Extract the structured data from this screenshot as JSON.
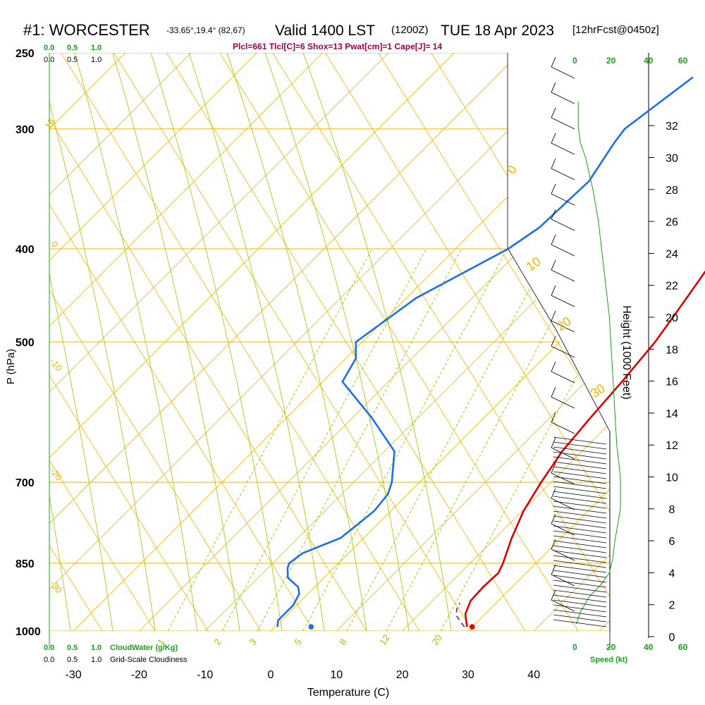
{
  "header": {
    "station": "#1: WORCESTER",
    "coords": "-33.65°,19.4° (82,67)",
    "valid": "Valid 1400 LST",
    "zulu": "(1200Z)",
    "date": "TUE 18 Apr 2023",
    "forecast": "[12hrFcst@0450z]",
    "indices": "Plcl=661 Tlcl[C]=6 Shox=13 Pwat[cm]=1 Cape[J]= 14"
  },
  "scale_labels": {
    "cloud_top": [
      "0.0",
      "0.5",
      "1.0"
    ],
    "cloudiness_top": [
      "0.0",
      "0.5",
      "1.0"
    ],
    "cloud_bottom": [
      "0.0",
      "0.5",
      "1.0"
    ],
    "cloudiness_bottom": [
      "0.0",
      "0.5",
      "1.0"
    ],
    "cloudwater_label": "CloudWater (g/Kg)",
    "cloudiness_label": "Grid-Scale Cloudiness",
    "speed_ticks": [
      "0",
      "20",
      "40",
      "60"
    ],
    "speed_label": "Speed (kt)"
  },
  "colors": {
    "isobar": "#f0b400",
    "isotherm": "#f0b400",
    "dry_adiabat": "#96c800",
    "moist_adiabat": "#96c800",
    "mixing_ratio": "#96c800",
    "temperature": "#e00000",
    "dewpoint": "#1e6ee6",
    "speed": "#1aa01a",
    "cloud": "#1aa01a",
    "indices": "#a0004b"
  },
  "chart_data": {
    "type": "line",
    "title": "#1: WORCESTER",
    "xlabel": "Temperature (C)",
    "ylabel": "P (hPa)",
    "y2label": "Height (1000 Feet)",
    "xlim": [
      -33,
      33
    ],
    "ylim": [
      1000,
      250
    ],
    "x_ticks": [
      -30,
      -20,
      -10,
      0,
      10,
      20,
      30,
      40
    ],
    "pressure_ticks": [
      250,
      300,
      400,
      500,
      700,
      850,
      1000
    ],
    "height_ticks": [
      0,
      2,
      4,
      6,
      8,
      10,
      12,
      14,
      16,
      18,
      20,
      22,
      24,
      26,
      28,
      30,
      32
    ],
    "isotherm_labels": [
      "10",
      "0",
      "-10",
      "-20",
      "-30",
      "0",
      "10",
      "20",
      "30"
    ],
    "mixing_ratio_labels": [
      "1",
      "2",
      "3",
      "5",
      "8",
      "12",
      "20"
    ],
    "series": [
      {
        "key": "temperature",
        "p": [
          990,
          960,
          930,
          900,
          870,
          850,
          800,
          750,
          700,
          650,
          600,
          550,
          500,
          450,
          400,
          350,
          300,
          265
        ],
        "temp": [
          29.2,
          27.0,
          25.8,
          25.6,
          25.8,
          25.0,
          22.5,
          20.2,
          18.5,
          17.0,
          16.2,
          15.5,
          14.5,
          12.6,
          10.4,
          7.4,
          3.4,
          0.0
        ]
      },
      {
        "key": "dewpoint",
        "p": [
          990,
          975,
          940,
          915,
          900,
          880,
          860,
          850,
          830,
          800,
          775,
          750,
          720,
          700,
          650,
          600,
          550,
          520,
          500,
          450,
          400,
          380,
          340,
          310,
          300,
          265
        ],
        "temp": [
          0.4,
          -0.5,
          -0.5,
          -1.3,
          -2.5,
          -5.5,
          -7.0,
          -7.5,
          -7.0,
          -3.5,
          -3.0,
          -2.5,
          -3.0,
          -4.2,
          -8.5,
          -17.0,
          -27.0,
          -28.5,
          -31.0,
          -28.5,
          -22.0,
          -20.5,
          -20.0,
          -22.0,
          -22.5,
          -20.0
        ]
      },
      {
        "key": "parcel",
        "p": [
          990,
          965,
          950,
          935
        ],
        "temp": [
          28.8,
          26.0,
          25.0,
          24.5
        ]
      }
    ],
    "surface_points": [
      {
        "key": "surface_temp",
        "p": 990,
        "temp": 30.0
      },
      {
        "key": "surface_dewpoint",
        "p": 990,
        "temp": 5.5
      }
    ],
    "speed_profile": {
      "height_kft": [
        0.8,
        1.5,
        2.5,
        3.2,
        4.0,
        5.0,
        6.0,
        8.0,
        10.0,
        11.0,
        12.0,
        14.0,
        16.0,
        18.0,
        20.0,
        22.0,
        24.0,
        26.0,
        28.0,
        30.0,
        31.0,
        32.0,
        33.5
      ],
      "speed_kt": [
        1,
        3,
        8,
        14,
        19,
        21,
        22,
        25,
        25,
        24,
        23,
        22,
        21,
        20,
        19,
        17,
        15,
        13,
        10,
        6,
        3,
        2,
        2
      ]
    }
  }
}
